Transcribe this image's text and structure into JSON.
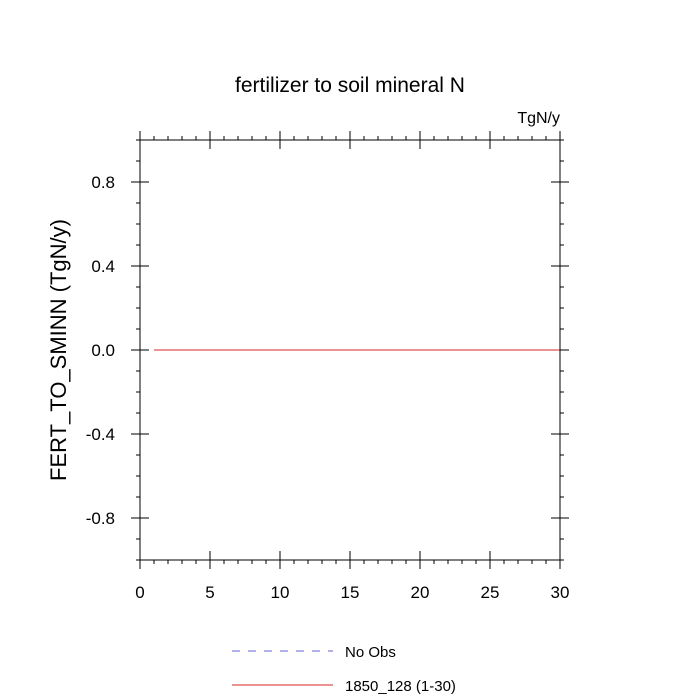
{
  "chart_data": {
    "type": "line",
    "title": "fertilizer to soil mineral N",
    "units_label": "TgN/y",
    "xlabel": "",
    "ylabel": "FERT_TO_SMINN  (TgN/y)",
    "xlim": [
      0,
      30
    ],
    "ylim": [
      -1.0,
      1.0
    ],
    "x_ticks": [
      0,
      5,
      10,
      15,
      20,
      25,
      30
    ],
    "x_tick_labels": [
      "0",
      "5",
      "10",
      "15",
      "20",
      "25",
      "30"
    ],
    "y_ticks": [
      -0.8,
      -0.4,
      0.0,
      0.4,
      0.8
    ],
    "y_tick_labels": [
      "-0.8",
      "-0.4",
      "0.0",
      "0.4",
      "0.8"
    ],
    "x_minor_step": 1,
    "y_minor_step": 0.1,
    "grid": false,
    "legend_position": "bottom",
    "series": [
      {
        "name": "No Obs",
        "color": "#8080e0",
        "dash": "dashed",
        "x": [],
        "y": []
      },
      {
        "name": "1850_128 (1-30)",
        "color": "#e05050",
        "dash": "solid",
        "x": [
          1,
          2,
          3,
          4,
          5,
          6,
          7,
          8,
          9,
          10,
          11,
          12,
          13,
          14,
          15,
          16,
          17,
          18,
          19,
          20,
          21,
          22,
          23,
          24,
          25,
          26,
          27,
          28,
          29,
          30
        ],
        "y": [
          0,
          0,
          0,
          0,
          0,
          0,
          0,
          0,
          0,
          0,
          0,
          0,
          0,
          0,
          0,
          0,
          0,
          0,
          0,
          0,
          0,
          0,
          0,
          0,
          0,
          0,
          0,
          0,
          0,
          0
        ]
      }
    ]
  }
}
